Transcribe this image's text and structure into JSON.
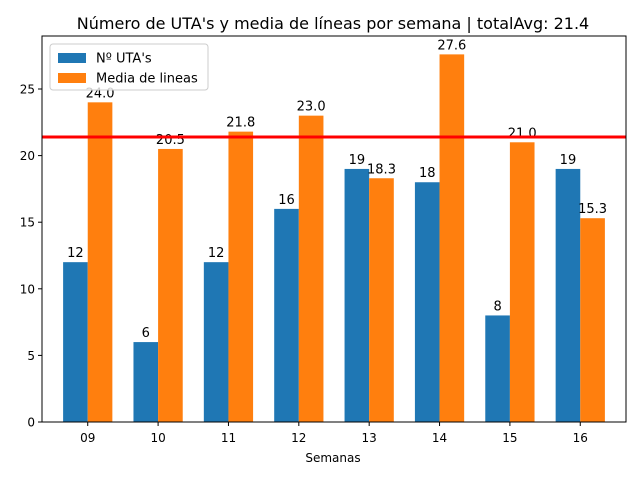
{
  "chart_data": {
    "type": "bar",
    "title": "Número de UTA's y media de líneas por semana | totalAvg: 21.4",
    "xlabel": "Semanas",
    "ylabel": "",
    "categories": [
      "09",
      "10",
      "11",
      "12",
      "13",
      "14",
      "15",
      "16"
    ],
    "series": [
      {
        "name": "Nº UTA's",
        "color": "#1f77b4",
        "values": [
          12,
          6,
          12,
          16,
          19,
          18,
          8,
          19
        ],
        "labels": [
          "12",
          "6",
          "12",
          "16",
          "19",
          "18",
          "8",
          "19"
        ]
      },
      {
        "name": "Media de lineas",
        "color": "#ff7f0e",
        "values": [
          24.0,
          20.5,
          21.8,
          23.0,
          18.3,
          27.6,
          21.0,
          15.3
        ],
        "labels": [
          "24.0",
          "20.5",
          "21.8",
          "23.0",
          "18.3",
          "27.6",
          "21.0",
          "15.3"
        ]
      }
    ],
    "reference_line": {
      "value": 21.4,
      "color": "#ff0000"
    },
    "ylim": [
      0,
      28.98
    ],
    "yticks": [
      0,
      5,
      10,
      15,
      20,
      25
    ],
    "ytick_labels": [
      "0",
      "5",
      "10",
      "15",
      "20",
      "25"
    ],
    "grid": false,
    "legend_position": "upper-left"
  }
}
